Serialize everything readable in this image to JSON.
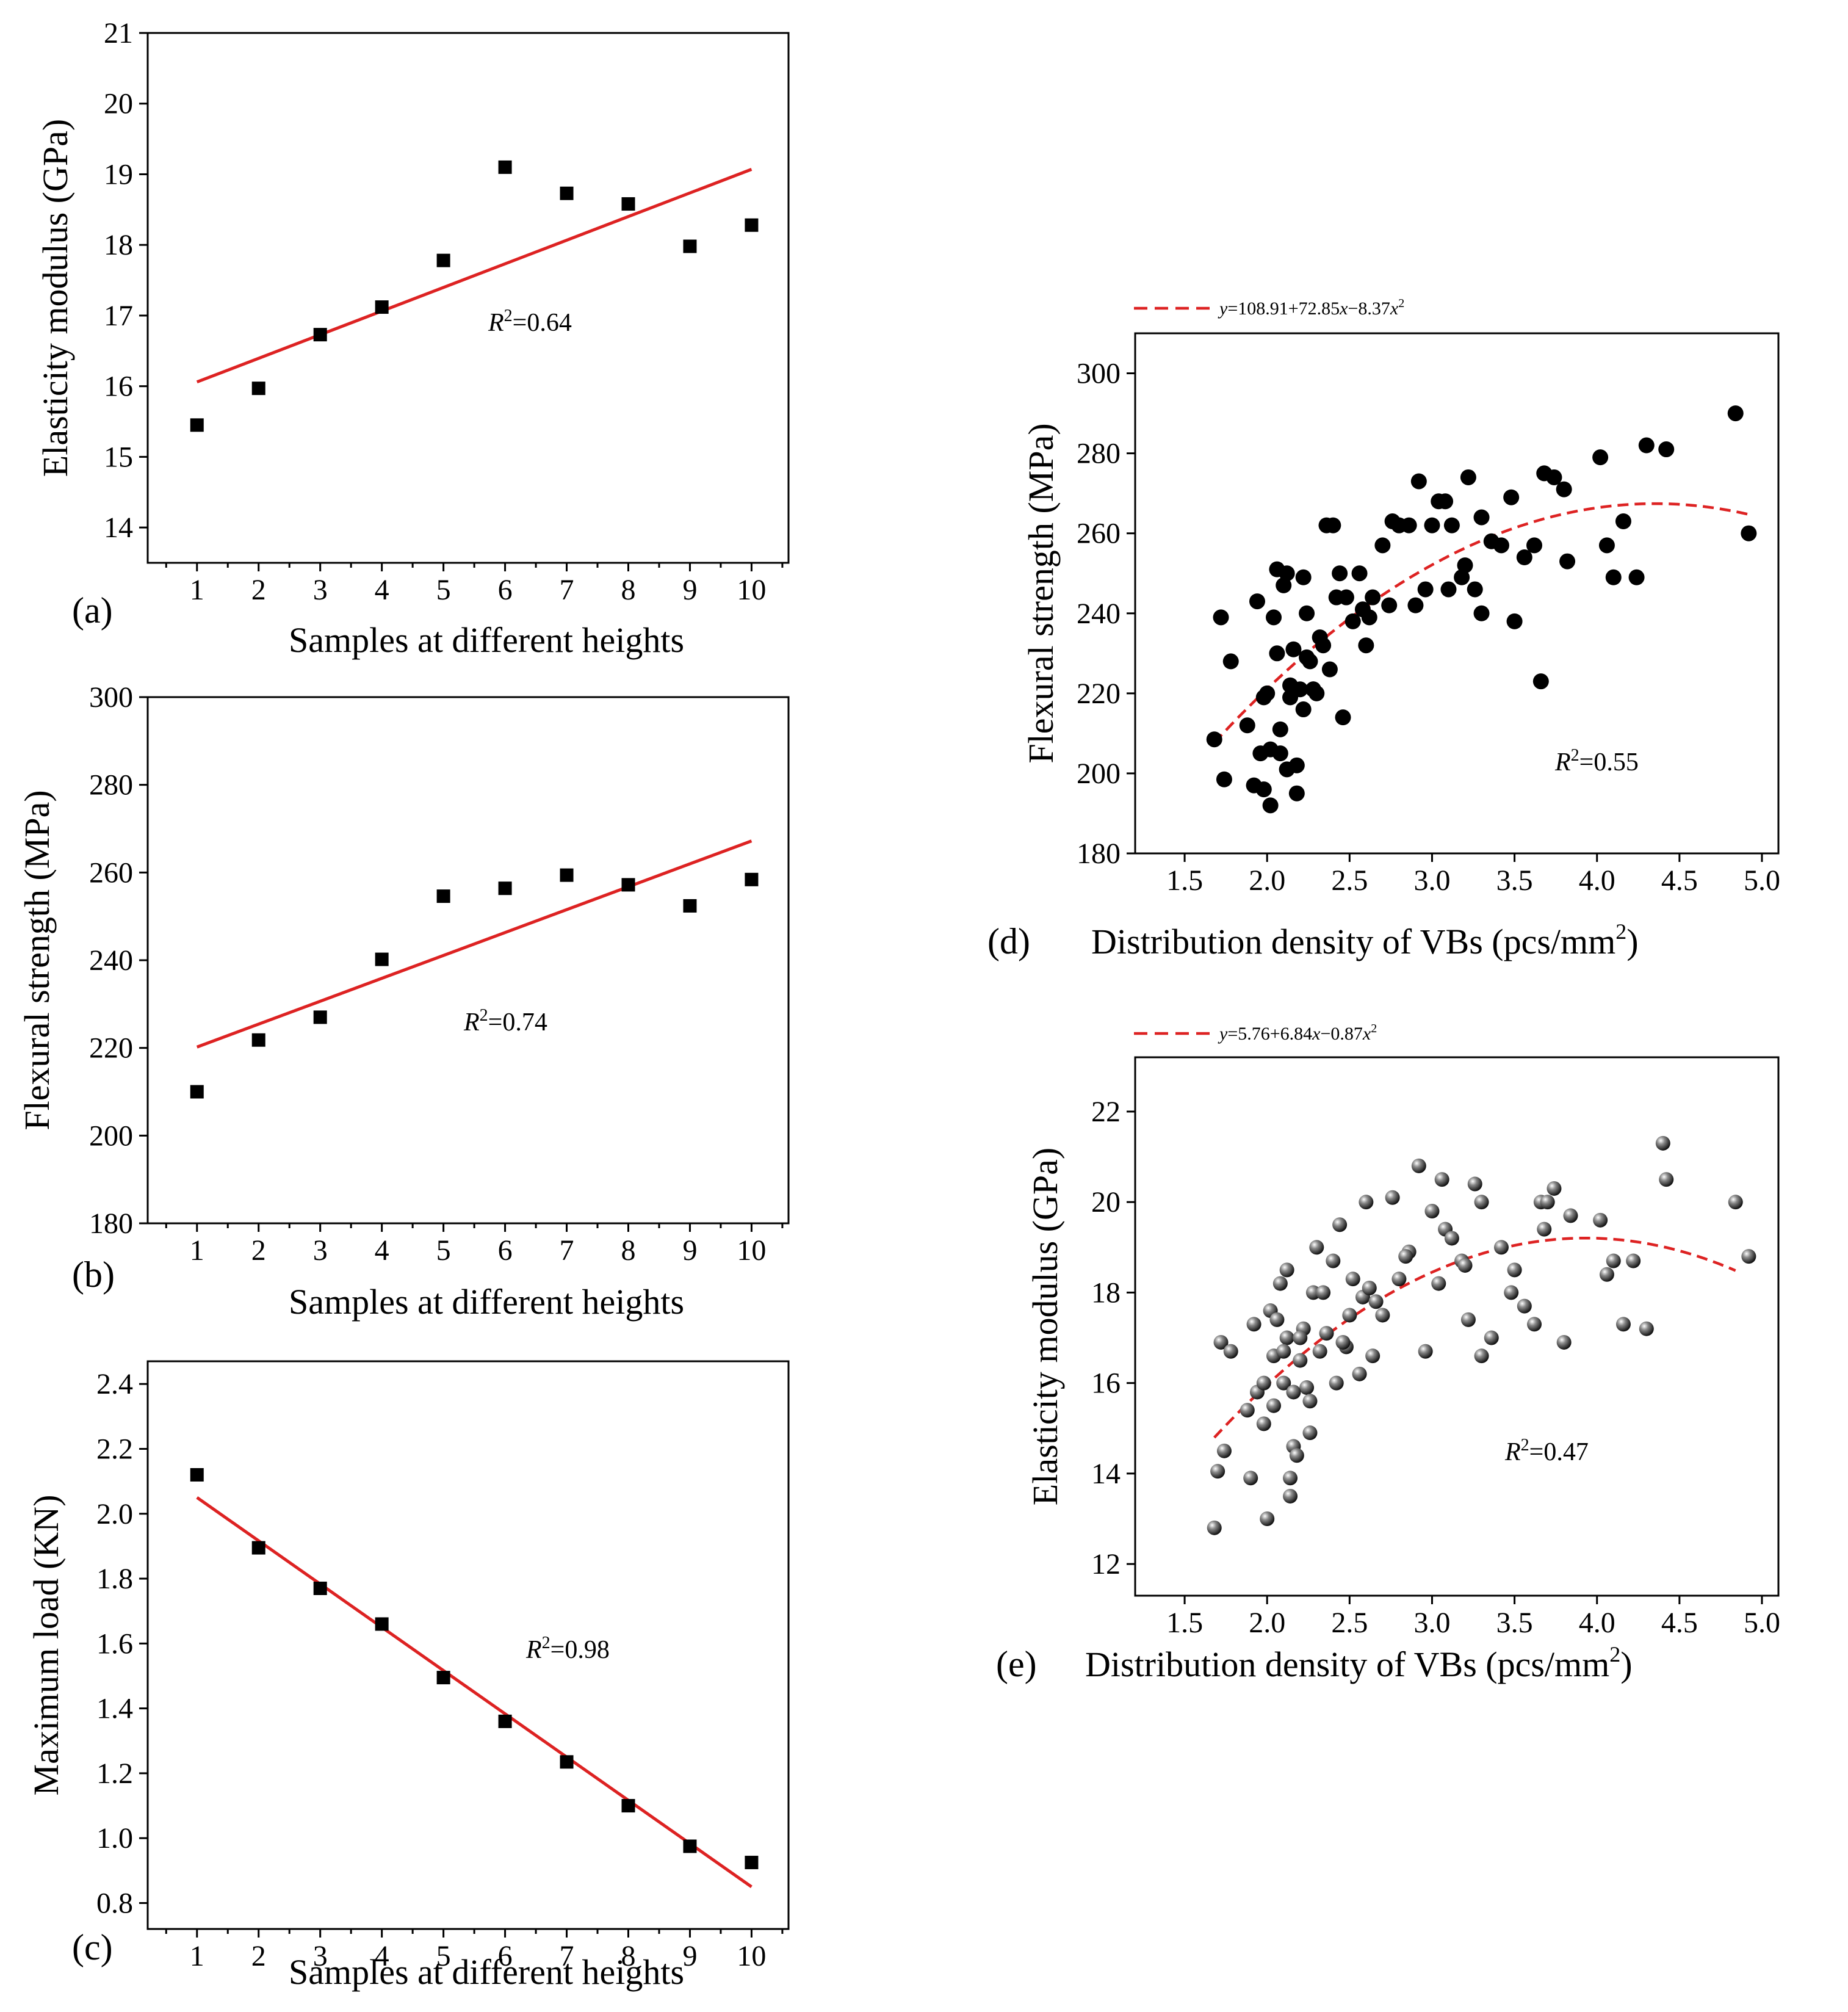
{
  "colors": {
    "fit_line": "#dd2222",
    "marker": "#000000"
  },
  "chart_data": [
    {
      "type": "scatter",
      "panel_label": "(a)",
      "xlabel": "Samples at different heights",
      "ylabel": "Elasticity modulus (GPa)",
      "xticks": [
        "1",
        "2",
        "3",
        "4",
        "5",
        "6",
        "7",
        "8",
        "9",
        "10"
      ],
      "yticks": [
        "14",
        "15",
        "16",
        "17",
        "18",
        "19",
        "20",
        "21"
      ],
      "xlim": [
        0.2,
        10.6
      ],
      "ylim": [
        13.5,
        21
      ],
      "marker": "square",
      "x": [
        1,
        2,
        3,
        4,
        5,
        6,
        7,
        8,
        9,
        10
      ],
      "y": [
        15.45,
        15.97,
        16.73,
        17.12,
        17.78,
        19.1,
        18.73,
        18.58,
        17.98,
        18.28
      ],
      "fit": {
        "kind": "linear",
        "x": [
          1,
          10
        ],
        "y": [
          16.06,
          19.07
        ]
      },
      "annotation": {
        "r_symbol": "R",
        "sup": "2",
        "value": "=0.64"
      },
      "legend": null
    },
    {
      "type": "scatter",
      "panel_label": "(b)",
      "xlabel": "Samples at different heights",
      "ylabel": "Flexural strength (MPa)",
      "xticks": [
        "1",
        "2",
        "3",
        "4",
        "5",
        "6",
        "7",
        "8",
        "9",
        "10"
      ],
      "yticks": [
        "180",
        "200",
        "220",
        "240",
        "260",
        "280",
        "300"
      ],
      "xlim": [
        0.2,
        10.6
      ],
      "ylim": [
        180,
        300
      ],
      "marker": "square",
      "x": [
        1,
        2,
        3,
        4,
        5,
        6,
        7,
        8,
        9,
        10
      ],
      "y": [
        210,
        221.8,
        227,
        240.2,
        254.6,
        256.4,
        259.4,
        257.2,
        252.4,
        258.4
      ],
      "fit": {
        "kind": "linear",
        "x": [
          1,
          10
        ],
        "y": [
          220.2,
          267.2
        ]
      },
      "annotation": {
        "r_symbol": "R",
        "sup": "2",
        "value": "=0.74"
      },
      "legend": null
    },
    {
      "type": "scatter",
      "panel_label": "(c)",
      "xlabel": "Samples at different heights",
      "ylabel": "Maximum load (KN)",
      "xticks": [
        "1",
        "2",
        "3",
        "4",
        "5",
        "6",
        "7",
        "8",
        "9",
        "10"
      ],
      "yticks": [
        "0.8",
        "1.0",
        "1.2",
        "1.4",
        "1.6",
        "1.8",
        "2.0",
        "2.2",
        "2.4"
      ],
      "xlim": [
        0.2,
        10.6
      ],
      "ylim": [
        0.72,
        2.47
      ],
      "marker": "square",
      "x": [
        1,
        2,
        3,
        4,
        5,
        6,
        7,
        8,
        9,
        10
      ],
      "y": [
        2.12,
        1.895,
        1.77,
        1.66,
        1.495,
        1.36,
        1.235,
        1.1,
        0.975,
        0.925
      ],
      "fit": {
        "kind": "linear",
        "x": [
          1,
          10
        ],
        "y": [
          2.05,
          0.85
        ]
      },
      "annotation": {
        "r_symbol": "R",
        "sup": "2",
        "value": "=0.98"
      },
      "legend": null
    },
    {
      "type": "scatter",
      "panel_label": "(d)",
      "xlabel": "Distribution density of VBs (pcs/mm",
      "xlabel_sup": "2",
      "xlabel_tail": ")",
      "ylabel": "Flexural strength (MPa)",
      "xticks": [
        "1.5",
        "2.0",
        "2.5",
        "3.0",
        "3.5",
        "4.0",
        "4.5",
        "5.0"
      ],
      "yticks": [
        "180",
        "200",
        "220",
        "240",
        "260",
        "280",
        "300"
      ],
      "xlim": [
        1.2,
        5.1
      ],
      "ylim": [
        180,
        310
      ],
      "marker": "circle",
      "x": [
        1.68,
        1.72,
        1.74,
        1.78,
        1.88,
        1.92,
        1.94,
        1.96,
        1.98,
        2.0,
        2.02,
        2.04,
        2.06,
        2.08,
        2.1,
        2.12,
        2.14,
        2.16,
        2.18,
        2.2,
        2.22,
        2.24,
        2.26,
        2.28,
        2.3,
        2.32,
        2.36,
        2.4,
        2.44,
        2.48,
        2.52,
        2.56,
        2.6,
        2.64,
        2.7,
        2.76,
        2.8,
        2.86,
        2.92,
        2.96,
        3.0,
        3.04,
        3.08,
        3.12,
        3.18,
        3.22,
        3.26,
        3.3,
        3.36,
        3.42,
        3.48,
        3.56,
        3.62,
        3.68,
        3.74,
        3.8,
        3.82,
        4.02,
        4.1,
        4.16,
        4.24,
        4.3,
        4.42,
        4.84,
        4.92,
        2.06,
        2.14,
        2.22,
        2.34,
        2.42,
        2.58,
        2.74,
        2.9,
        3.1,
        3.2,
        3.3,
        3.66,
        2.46,
        2.62,
        2.12,
        2.02,
        2.18,
        2.28,
        2.08,
        1.98,
        3.5,
        4.06,
        2.24,
        2.38,
        2.8
      ],
      "y": [
        208.5,
        239,
        198.5,
        228,
        212,
        197,
        243,
        205,
        196,
        220,
        192,
        239,
        230,
        211,
        247,
        201,
        219,
        231,
        195,
        221,
        249,
        240,
        228,
        221,
        220,
        234,
        262,
        262,
        250,
        244,
        238,
        250,
        232,
        244,
        257,
        263,
        262,
        262,
        273,
        246,
        262,
        268,
        268,
        262,
        249,
        274,
        246,
        264,
        258,
        257,
        269,
        254,
        257,
        275,
        274,
        271,
        253,
        279,
        249,
        263,
        249,
        282,
        281,
        290,
        260,
        251,
        222,
        216,
        232,
        244,
        241,
        242,
        242,
        246,
        252,
        240,
        223,
        214,
        239,
        250,
        206,
        202,
        221,
        205,
        219,
        238,
        257,
        229,
        226,
        262
      ],
      "fit": {
        "kind": "quadratic",
        "coeffs": [
          108.91,
          72.85,
          -8.37
        ],
        "x_range": [
          1.68,
          4.92
        ]
      },
      "annotation": {
        "r_symbol": "R",
        "sup": "2",
        "value": "=0.55"
      },
      "legend": {
        "y_symbol": "y",
        "formula": "=108.91+72.85",
        "x_symbol": "x",
        "minus": "−8.37",
        "x2_symbol": "x",
        "x2_sup": "2"
      }
    },
    {
      "type": "scatter",
      "panel_label": "(e)",
      "xlabel": "Distribution density of VBs (pcs/mm",
      "xlabel_sup": "2",
      "xlabel_tail": ")",
      "ylabel": "Elasticity modulus (GPa)",
      "xticks": [
        "1.5",
        "2.0",
        "2.5",
        "3.0",
        "3.5",
        "4.0",
        "4.5",
        "5.0"
      ],
      "yticks": [
        "12",
        "14",
        "16",
        "18",
        "20",
        "22"
      ],
      "xlim": [
        1.2,
        5.1
      ],
      "ylim": [
        11.3,
        23.2
      ],
      "marker": "sphere",
      "x": [
        1.68,
        1.7,
        1.72,
        1.74,
        1.78,
        1.88,
        1.9,
        1.92,
        1.94,
        1.98,
        2.0,
        2.02,
        2.04,
        2.06,
        2.08,
        2.1,
        2.12,
        2.14,
        2.16,
        2.18,
        2.2,
        2.22,
        2.24,
        2.26,
        2.28,
        2.3,
        2.32,
        2.36,
        2.4,
        2.44,
        2.48,
        2.52,
        2.56,
        2.6,
        2.64,
        2.7,
        2.76,
        2.8,
        2.86,
        2.92,
        2.96,
        3.0,
        3.04,
        3.08,
        3.12,
        3.18,
        3.22,
        3.26,
        3.3,
        3.36,
        3.42,
        3.48,
        3.56,
        3.62,
        3.68,
        3.74,
        3.8,
        3.84,
        4.02,
        4.1,
        4.16,
        4.22,
        4.3,
        4.4,
        4.42,
        4.84,
        4.92,
        2.12,
        2.16,
        2.2,
        2.34,
        2.42,
        2.58,
        2.66,
        2.84,
        3.06,
        3.2,
        3.3,
        3.66,
        2.46,
        2.62,
        2.14,
        2.04,
        2.26,
        2.1,
        1.98,
        3.5,
        4.06,
        3.7,
        2.5
      ],
      "y": [
        12.8,
        14.05,
        16.9,
        14.5,
        16.7,
        15.4,
        13.9,
        17.3,
        15.8,
        15.1,
        13.0,
        17.6,
        16.6,
        17.4,
        18.2,
        16.0,
        18.5,
        13.5,
        14.6,
        14.4,
        16.5,
        17.2,
        15.9,
        14.9,
        18.0,
        19.0,
        16.7,
        17.1,
        18.7,
        19.5,
        16.8,
        18.3,
        16.2,
        20.0,
        16.6,
        17.5,
        20.1,
        18.3,
        18.9,
        20.8,
        16.7,
        19.8,
        18.2,
        19.4,
        19.2,
        18.7,
        17.4,
        20.4,
        16.6,
        17.0,
        19.0,
        18.0,
        17.7,
        17.3,
        19.4,
        20.3,
        16.9,
        19.7,
        19.6,
        18.7,
        17.3,
        18.7,
        17.2,
        21.3,
        20.5,
        20.0,
        18.8,
        17.0,
        15.8,
        17.0,
        18.0,
        16.0,
        17.9,
        17.8,
        18.8,
        20.5,
        18.6,
        20.0,
        20.0,
        16.9,
        18.1,
        13.9,
        15.5,
        15.6,
        16.7,
        16.0,
        18.5,
        18.4,
        20.0,
        17.5
      ],
      "fit": {
        "kind": "quadratic",
        "coeffs": [
          5.76,
          6.84,
          -0.87
        ],
        "x_range": [
          1.68,
          4.84
        ]
      },
      "annotation": {
        "r_symbol": "R",
        "sup": "2",
        "value": "=0.47"
      },
      "legend": {
        "y_symbol": "y",
        "formula": "=5.76+6.84",
        "x_symbol": "x",
        "minus": "−0.87",
        "x2_symbol": "x",
        "x2_sup": "2"
      }
    }
  ]
}
